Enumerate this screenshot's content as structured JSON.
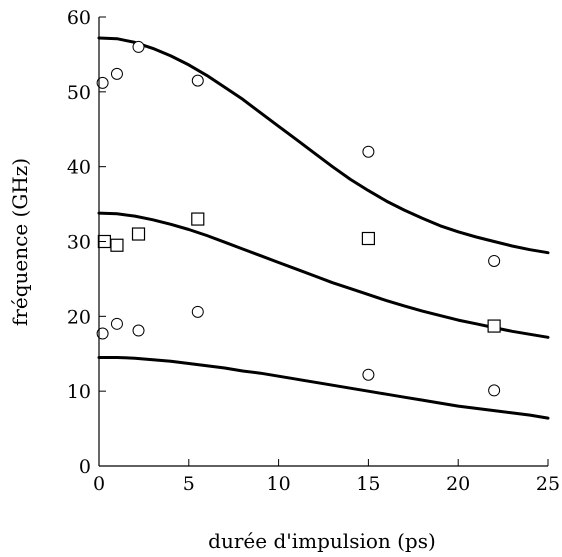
{
  "chart_data": {
    "type": "scatter",
    "title": "",
    "xlabel": "durée d'impulsion (ps)",
    "ylabel": "fréquence (GHz)",
    "xlim": [
      0,
      25
    ],
    "ylim": [
      0,
      60
    ],
    "x_ticks": [
      0,
      5,
      10,
      15,
      20,
      25
    ],
    "y_ticks": [
      0,
      10,
      20,
      30,
      40,
      50,
      60
    ],
    "x_tick_labels": [
      "0",
      "5",
      "10",
      "15",
      "20",
      "25"
    ],
    "y_tick_labels": [
      "0",
      "10",
      "20",
      "30",
      "40",
      "50",
      "60"
    ],
    "grid": false,
    "legend": "none",
    "series": [
      {
        "kind": "points",
        "marker": "circle",
        "x": [
          0.2,
          1.0,
          2.2,
          5.5,
          15.0,
          22.0
        ],
        "y": [
          51.2,
          52.4,
          56.0,
          51.5,
          42.0,
          27.4
        ]
      },
      {
        "kind": "points",
        "marker": "square",
        "x": [
          0.3,
          1.0,
          2.2,
          5.5,
          15.0,
          22.0
        ],
        "y": [
          30.0,
          29.5,
          31.0,
          33.0,
          30.4,
          18.7
        ]
      },
      {
        "kind": "points",
        "marker": "circle",
        "x": [
          0.2,
          1.0,
          2.2,
          5.5,
          15.0,
          22.0
        ],
        "y": [
          17.7,
          19.0,
          18.1,
          20.6,
          12.2,
          10.1
        ]
      },
      {
        "kind": "line",
        "x": [
          0,
          1,
          2,
          3,
          4,
          5,
          6,
          7,
          8,
          9,
          10,
          11,
          12,
          13,
          14,
          15,
          16,
          17,
          18,
          19,
          20,
          21,
          22,
          23,
          24,
          25
        ],
        "y": [
          57.2,
          57.1,
          56.6,
          55.8,
          54.8,
          53.6,
          52.2,
          50.6,
          49.0,
          47.2,
          45.4,
          43.6,
          41.8,
          40.0,
          38.3,
          36.8,
          35.4,
          34.2,
          33.1,
          32.1,
          31.3,
          30.6,
          30.0,
          29.4,
          28.9,
          28.5
        ]
      },
      {
        "kind": "line",
        "x": [
          0,
          1,
          2,
          3,
          4,
          5,
          6,
          7,
          8,
          9,
          10,
          11,
          12,
          13,
          14,
          15,
          16,
          17,
          18,
          19,
          20,
          21,
          22,
          23,
          24,
          25
        ],
        "y": [
          33.8,
          33.7,
          33.4,
          32.9,
          32.3,
          31.6,
          30.8,
          29.9,
          29.0,
          28.1,
          27.2,
          26.3,
          25.4,
          24.5,
          23.7,
          22.9,
          22.1,
          21.4,
          20.7,
          20.1,
          19.5,
          19.0,
          18.5,
          18.0,
          17.6,
          17.2
        ]
      },
      {
        "kind": "line",
        "x": [
          0,
          1,
          2,
          3,
          4,
          5,
          6,
          7,
          8,
          9,
          10,
          11,
          12,
          13,
          14,
          15,
          16,
          17,
          18,
          19,
          20,
          21,
          22,
          23,
          24,
          25
        ],
        "y": [
          14.5,
          14.5,
          14.4,
          14.2,
          14.0,
          13.7,
          13.4,
          13.1,
          12.7,
          12.4,
          12.0,
          11.6,
          11.2,
          10.8,
          10.4,
          10.0,
          9.6,
          9.2,
          8.8,
          8.4,
          8.0,
          7.7,
          7.4,
          7.1,
          6.8,
          6.4
        ]
      }
    ]
  }
}
